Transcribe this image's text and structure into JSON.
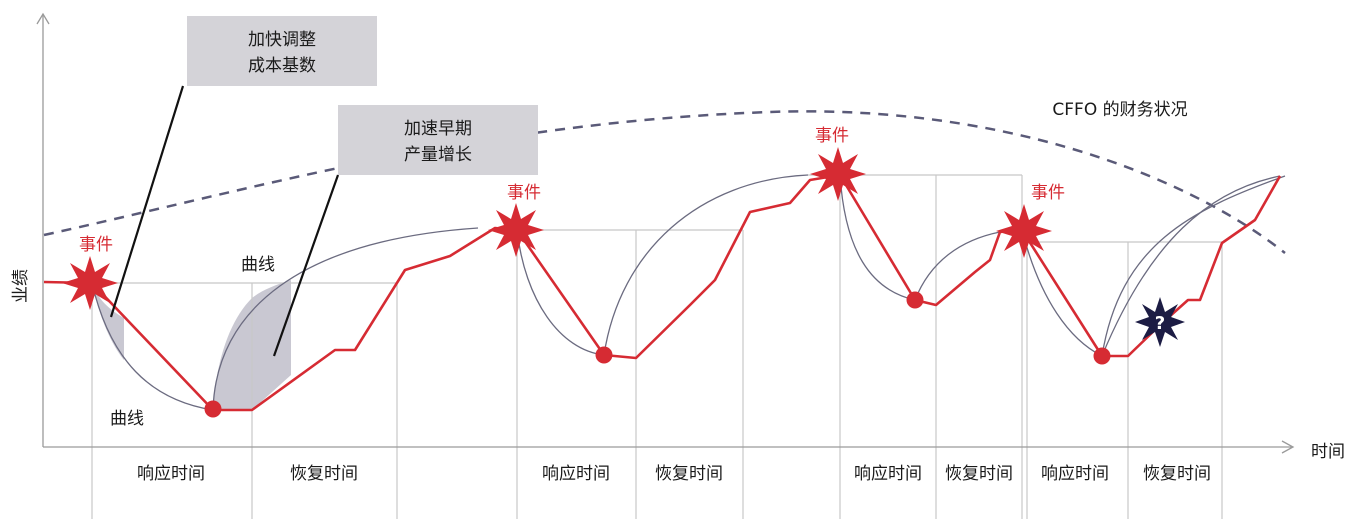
{
  "axes": {
    "y_label": "业绩",
    "x_label": "时间"
  },
  "financial_curve_label": "CFFO 的财务状况",
  "callouts": [
    {
      "line1": "加快调整",
      "line2": "成本基数"
    },
    {
      "line1": "加速早期",
      "line2": "产量增长"
    }
  ],
  "curve_labels": {
    "upper": "曲线",
    "lower": "曲线"
  },
  "event_label": "事件",
  "events": [
    "事件",
    "事件",
    "事件",
    "事件"
  ],
  "phase_labels": [
    "响应时间",
    "恢复时间",
    "响应时间",
    "恢复时间",
    "响应时间",
    "恢复时间",
    "响应时间",
    "恢复时间"
  ],
  "unknown_marker": "?",
  "colors": {
    "performance_line": "#d62b33",
    "event_star": "#d62b33",
    "financial_curve": "#5a5a78",
    "curve_lines": "#6b6b80",
    "grid": "#c8c8c8",
    "shaded_area": "#c9c8d2",
    "callout_box": "#d4d3d8",
    "unknown_star": "#1c1c44"
  }
}
